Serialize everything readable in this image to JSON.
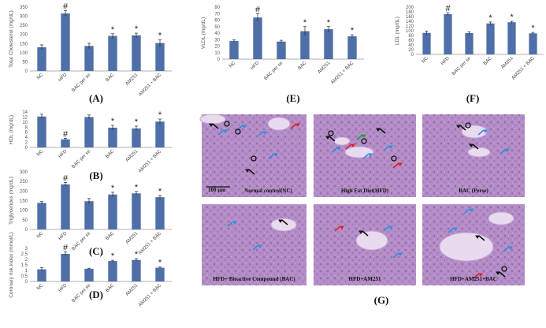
{
  "chart_data": [
    {
      "id": "A",
      "type": "bar",
      "panel_label": "(A)",
      "ylabel": "Total Cholesterol (mg/dL)",
      "ylim": [
        0,
        350
      ],
      "yticks": [
        0,
        50,
        100,
        150,
        200,
        250,
        300,
        350
      ],
      "categories": [
        "NC",
        "HFD",
        "BAC per se",
        "BAC",
        "AM251",
        "AM251 + BAC"
      ],
      "values": [
        130,
        315,
        137,
        192,
        195,
        153
      ],
      "errors": [
        13,
        16,
        15,
        12,
        12,
        17
      ],
      "significance": [
        "",
        "#",
        "",
        "*",
        "*",
        "*"
      ],
      "color": "#4f6fa8"
    },
    {
      "id": "B",
      "type": "bar",
      "panel_label": "(B)",
      "ylabel": "HDL (mg/dL)",
      "ylim": [
        0,
        14
      ],
      "yticks": [
        0,
        2,
        4,
        6,
        8,
        10,
        12,
        14
      ],
      "categories": [
        "NC",
        "HFD",
        "BAC per se",
        "BAC",
        "AM251",
        "AM251 + BAC"
      ],
      "values": [
        12.2,
        3.2,
        12.0,
        7.8,
        7.5,
        10.2
      ],
      "errors": [
        0.9,
        0.4,
        0.8,
        0.9,
        0.9,
        1.0
      ],
      "significance": [
        "",
        "#",
        "",
        "*",
        "*",
        "*"
      ],
      "color": "#4f6fa8"
    },
    {
      "id": "C",
      "type": "bar",
      "panel_label": "(C)",
      "ylabel": "Triglycerides (mg/dL)",
      "ylim": [
        0,
        300
      ],
      "yticks": [
        0,
        50,
        100,
        150,
        200,
        250,
        300
      ],
      "categories": [
        "NC",
        "HFD",
        "BAC per se",
        "BAC",
        "AM251",
        "AM251 + BAC"
      ],
      "values": [
        138,
        235,
        147,
        182,
        188,
        168
      ],
      "errors": [
        7,
        10,
        14,
        12,
        10,
        9
      ],
      "significance": [
        "",
        "#",
        "",
        "*",
        "*",
        "*"
      ],
      "color": "#4f6fa8"
    },
    {
      "id": "D",
      "type": "bar",
      "panel_label": "(D)",
      "ylabel": "Coronary risk index (mmol/L)",
      "ylim": [
        0,
        3
      ],
      "yticks": [
        0,
        0.5,
        1,
        1.5,
        2,
        2.5,
        3
      ],
      "ytick_labels": [
        "0",
        "0.5",
        "1",
        "1.5",
        "2",
        "2.5",
        "3"
      ],
      "categories": [
        "NC",
        "HFD",
        "BAC per se",
        "BAC",
        "AM251",
        "AM251 + BAC"
      ],
      "values": [
        1.1,
        2.5,
        1.15,
        1.85,
        1.95,
        1.25
      ],
      "errors": [
        0.15,
        0.18,
        0.05,
        0.07,
        0.12,
        0.06
      ],
      "significance": [
        "",
        "#",
        "",
        "*",
        "*",
        "*"
      ],
      "color": "#4f6fa8"
    },
    {
      "id": "E",
      "type": "bar",
      "panel_label": "(E)",
      "ylabel": "VLDL (mg/dL)",
      "ylim": [
        0,
        80
      ],
      "yticks": [
        0,
        10,
        20,
        30,
        40,
        50,
        60,
        70,
        80
      ],
      "categories": [
        "NC",
        "HFD",
        "BAC per se",
        "BAC",
        "AM251",
        "AM251 + BAC"
      ],
      "values": [
        28,
        64,
        27,
        43,
        46,
        35
      ],
      "errors": [
        1.5,
        6,
        2,
        7,
        4,
        2.5
      ],
      "significance": [
        "",
        "#",
        "",
        "*",
        "*",
        "*"
      ],
      "color": "#4f6fa8"
    },
    {
      "id": "F",
      "type": "bar",
      "panel_label": "(F)",
      "ylabel": "LDL (mg/dL)",
      "ylim": [
        0,
        200
      ],
      "yticks": [
        0,
        20,
        40,
        60,
        80,
        100,
        120,
        140,
        160,
        180,
        200
      ],
      "categories": [
        "NC",
        "HFD",
        "BAC per se",
        "BAC",
        "AM251",
        "AM251 + BAC"
      ],
      "values": [
        91,
        170,
        90,
        131,
        136,
        89
      ],
      "errors": [
        8,
        6,
        6,
        6,
        4,
        4
      ],
      "significance": [
        "",
        "#",
        "",
        "*",
        "*",
        "*"
      ],
      "color": "#4f6fa8"
    }
  ],
  "histology": {
    "panel_label": "(G)",
    "scale_bar": "100 µm",
    "images": [
      {
        "label": "Normal control(NC)"
      },
      {
        "label": "High Fat Diet(HFD)"
      },
      {
        "label": "BAC (Perse)"
      },
      {
        "label": "HFD+ Bioactive Compound (BAC)"
      },
      {
        "label": "HFD+AM251"
      },
      {
        "label": "HFD+AM251+BAC"
      }
    ],
    "tissue_color": "#b389c4",
    "arrow_colors": {
      "black": "#111111",
      "blue": "#2f8fe0",
      "red": "#e02020",
      "green": "#1f9a3a"
    }
  }
}
